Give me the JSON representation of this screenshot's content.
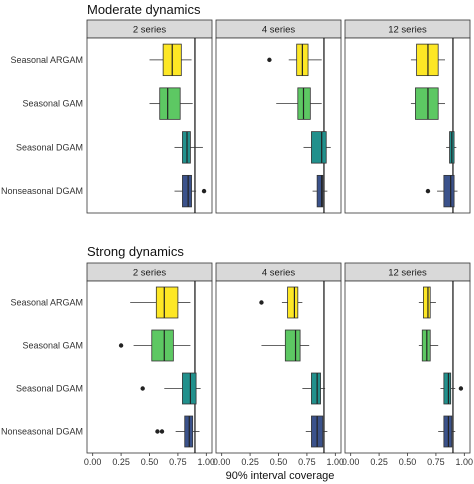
{
  "xlabel": "90% interval coverage",
  "x_ticks": [
    {
      "value": 0,
      "label": "0.00"
    },
    {
      "value": 0.25,
      "label": "0.25"
    },
    {
      "value": 0.5,
      "label": "0.50"
    },
    {
      "value": 0.75,
      "label": "0.75"
    },
    {
      "value": 1,
      "label": "1.00"
    }
  ],
  "xlim": [
    -0.05,
    1.05
  ],
  "reference_line": 0.9,
  "category_colors": {
    "Seasonal ARGAM": "#FDE725",
    "Seasonal GAM": "#5DC863",
    "Seasonal DGAM": "#21908C",
    "Nonseasonal DGAM": "#3B528B"
  },
  "chart_data": [
    {
      "type": "boxplot",
      "title": "Moderate dynamics",
      "categories": [
        "Seasonal ARGAM",
        "Seasonal GAM",
        "Seasonal DGAM",
        "Nonseasonal DGAM"
      ],
      "panels": [
        {
          "label": "2 series",
          "boxes": [
            {
              "category": "Seasonal ARGAM",
              "min": 0.5,
              "q1": 0.62,
              "median": 0.7,
              "q3": 0.78,
              "max": 0.87,
              "outliers": []
            },
            {
              "category": "Seasonal GAM",
              "min": 0.5,
              "q1": 0.59,
              "median": 0.66,
              "q3": 0.77,
              "max": 0.88,
              "outliers": []
            },
            {
              "category": "Seasonal DGAM",
              "min": 0.72,
              "q1": 0.79,
              "median": 0.83,
              "q3": 0.86,
              "max": 0.97,
              "outliers": []
            },
            {
              "category": "Nonseasonal DGAM",
              "min": 0.72,
              "q1": 0.79,
              "median": 0.84,
              "q3": 0.87,
              "max": 0.91,
              "outliers": [
                0.98
              ]
            }
          ]
        },
        {
          "label": "4 series",
          "boxes": [
            {
              "category": "Seasonal ARGAM",
              "min": 0.59,
              "q1": 0.66,
              "median": 0.71,
              "q3": 0.76,
              "max": 0.88,
              "outliers": [
                0.42
              ]
            },
            {
              "category": "Seasonal GAM",
              "min": 0.48,
              "q1": 0.67,
              "median": 0.72,
              "q3": 0.78,
              "max": 0.88,
              "outliers": []
            },
            {
              "category": "Seasonal DGAM",
              "min": 0.72,
              "q1": 0.79,
              "median": 0.88,
              "q3": 0.92,
              "max": 0.96,
              "outliers": []
            },
            {
              "category": "Nonseasonal DGAM",
              "min": 0.8,
              "q1": 0.84,
              "median": 0.88,
              "q3": 0.89,
              "max": 0.93,
              "outliers": []
            }
          ]
        },
        {
          "label": "12 series",
          "boxes": [
            {
              "category": "Seasonal ARGAM",
              "min": 0.53,
              "q1": 0.58,
              "median": 0.68,
              "q3": 0.77,
              "max": 0.83,
              "outliers": []
            },
            {
              "category": "Seasonal GAM",
              "min": 0.53,
              "q1": 0.57,
              "median": 0.68,
              "q3": 0.77,
              "max": 0.83,
              "outliers": []
            },
            {
              "category": "Seasonal DGAM",
              "min": 0.84,
              "q1": 0.87,
              "median": 0.89,
              "q3": 0.91,
              "max": 0.93,
              "outliers": []
            },
            {
              "category": "Nonseasonal DGAM",
              "min": 0.76,
              "q1": 0.82,
              "median": 0.88,
              "q3": 0.91,
              "max": 0.94,
              "outliers": [
                0.68
              ]
            }
          ]
        }
      ]
    },
    {
      "type": "boxplot",
      "title": "Strong dynamics",
      "categories": [
        "Seasonal ARGAM",
        "Seasonal GAM",
        "Seasonal DGAM",
        "Nonseasonal DGAM"
      ],
      "panels": [
        {
          "label": "2 series",
          "boxes": [
            {
              "category": "Seasonal ARGAM",
              "min": 0.33,
              "q1": 0.56,
              "median": 0.63,
              "q3": 0.75,
              "max": 0.86,
              "outliers": []
            },
            {
              "category": "Seasonal GAM",
              "min": 0.36,
              "q1": 0.52,
              "median": 0.63,
              "q3": 0.71,
              "max": 0.86,
              "outliers": [
                0.25
              ]
            },
            {
              "category": "Seasonal DGAM",
              "min": 0.63,
              "q1": 0.79,
              "median": 0.86,
              "q3": 0.91,
              "max": 0.95,
              "outliers": [
                0.44
              ]
            },
            {
              "category": "Nonseasonal DGAM",
              "min": 0.73,
              "q1": 0.81,
              "median": 0.85,
              "q3": 0.88,
              "max": 0.94,
              "outliers": [
                0.57,
                0.61
              ]
            }
          ]
        },
        {
          "label": "4 series",
          "boxes": [
            {
              "category": "Seasonal ARGAM",
              "min": 0.53,
              "q1": 0.58,
              "median": 0.64,
              "q3": 0.67,
              "max": 0.71,
              "outliers": [
                0.35
              ]
            },
            {
              "category": "Seasonal GAM",
              "min": 0.35,
              "q1": 0.56,
              "median": 0.65,
              "q3": 0.69,
              "max": 0.77,
              "outliers": []
            },
            {
              "category": "Seasonal DGAM",
              "min": 0.71,
              "q1": 0.79,
              "median": 0.84,
              "q3": 0.87,
              "max": 0.91,
              "outliers": []
            },
            {
              "category": "Nonseasonal DGAM",
              "min": 0.74,
              "q1": 0.79,
              "median": 0.84,
              "q3": 0.89,
              "max": 0.93,
              "outliers": []
            }
          ]
        },
        {
          "label": "12 series",
          "boxes": [
            {
              "category": "Seasonal ARGAM",
              "min": 0.6,
              "q1": 0.64,
              "median": 0.68,
              "q3": 0.7,
              "max": 0.75,
              "outliers": []
            },
            {
              "category": "Seasonal GAM",
              "min": 0.6,
              "q1": 0.63,
              "median": 0.67,
              "q3": 0.7,
              "max": 0.77,
              "outliers": []
            },
            {
              "category": "Seasonal DGAM",
              "min": 0.79,
              "q1": 0.82,
              "median": 0.86,
              "q3": 0.88,
              "max": 0.92,
              "outliers": [
                0.97
              ]
            },
            {
              "category": "Nonseasonal DGAM",
              "min": 0.77,
              "q1": 0.82,
              "median": 0.86,
              "q3": 0.89,
              "max": 0.92,
              "outliers": []
            }
          ]
        }
      ]
    }
  ]
}
